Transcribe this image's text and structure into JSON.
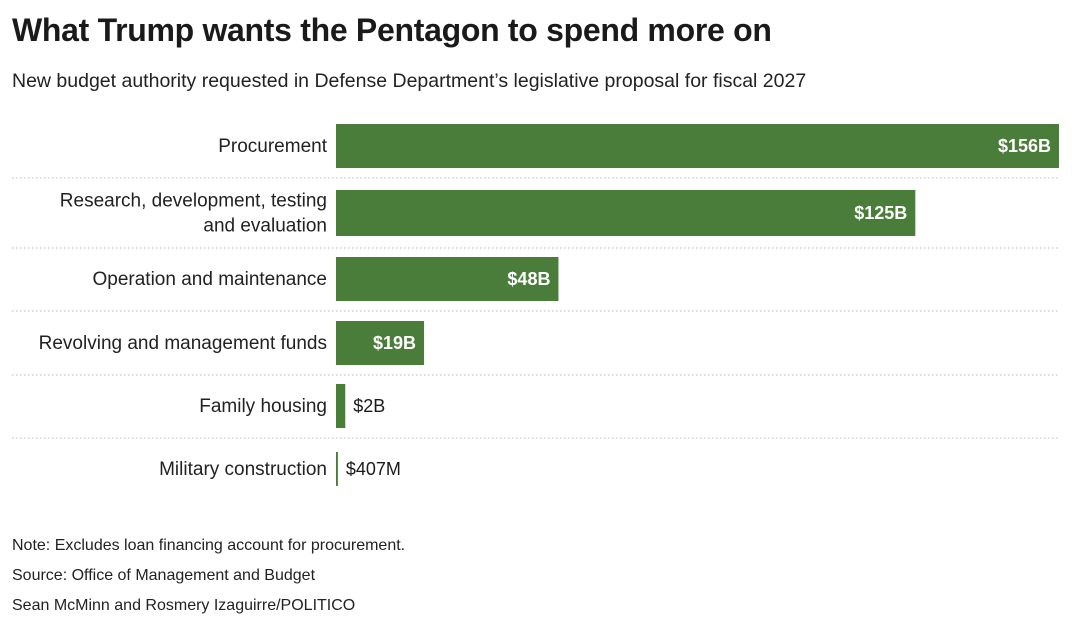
{
  "chart_data": {
    "type": "bar",
    "orientation": "horizontal",
    "title": "What Trump wants the Pentagon to spend more on",
    "subtitle": "New budget authority requested in Defense Department’s legislative proposal for fiscal 2027",
    "units": "billions of dollars",
    "categories": [
      "Procurement",
      "Research, development, testing and evaluation",
      "Operation and maintenance",
      "Revolving and management funds",
      "Family housing",
      "Military construction"
    ],
    "category_lines": [
      [
        "Procurement"
      ],
      [
        "Research, development, testing",
        "and evaluation"
      ],
      [
        "Operation and maintenance"
      ],
      [
        "Revolving and management funds"
      ],
      [
        "Family housing"
      ],
      [
        "Military construction"
      ]
    ],
    "values": [
      156,
      125,
      48,
      19,
      2,
      0.407
    ],
    "value_labels": [
      "$156B",
      "$125B",
      "$48B",
      "$19B",
      "$2B",
      "$407M"
    ],
    "xlim": [
      0,
      156
    ],
    "grid": false,
    "bar_color": "#4a7c3a"
  },
  "notes": {
    "note": "Note: Excludes loan financing account for procurement.",
    "source": "Source: Office of Management and Budget",
    "credit": "Sean McMinn and Rosmery Izaguirre/POLITICO"
  }
}
